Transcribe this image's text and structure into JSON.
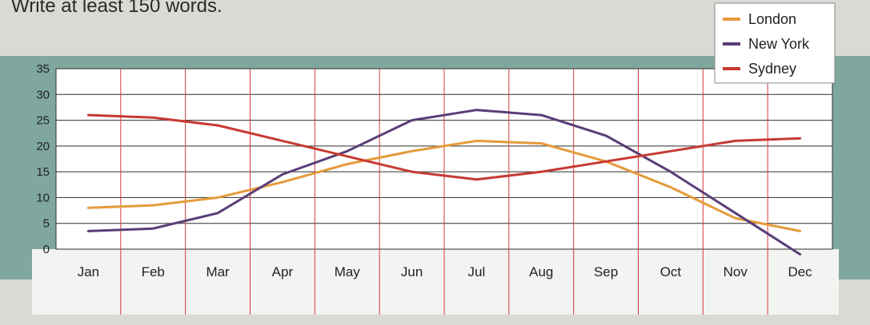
{
  "instruction_text": "Write at least 150 words.",
  "colors": {
    "london": "#e59a3a",
    "new_york": "#5a3e78",
    "sydney": "#c63a32",
    "frame": "#7fa79e",
    "plot_bg": "#ffffff",
    "v_grid": "#d23c3c",
    "h_grid": "#2e2e2e"
  },
  "chart_data": {
    "type": "line",
    "title": "",
    "xlabel": "",
    "ylabel": "",
    "categories": [
      "Jan",
      "Feb",
      "Mar",
      "Apr",
      "May",
      "Jun",
      "Jul",
      "Aug",
      "Sep",
      "Oct",
      "Nov",
      "Dec"
    ],
    "y_ticks": [
      "0",
      "5",
      "10",
      "15",
      "20",
      "25",
      "30",
      "35"
    ],
    "ylim": [
      0,
      35
    ],
    "grid": true,
    "legend_position": "top-right",
    "series": [
      {
        "name": "London",
        "color_key": "london",
        "values": [
          8,
          8.5,
          10,
          13,
          16.5,
          19,
          21,
          20.5,
          17,
          12,
          6,
          3.5
        ]
      },
      {
        "name": "New York",
        "color_key": "new_york",
        "values": [
          3.5,
          4,
          7,
          14.5,
          19,
          25,
          27,
          26,
          22,
          15,
          7,
          -1
        ]
      },
      {
        "name": "Sydney",
        "color_key": "sydney",
        "values": [
          26,
          25.5,
          24,
          21,
          18,
          15,
          13.5,
          15,
          17,
          19,
          21,
          21.5
        ]
      }
    ]
  }
}
